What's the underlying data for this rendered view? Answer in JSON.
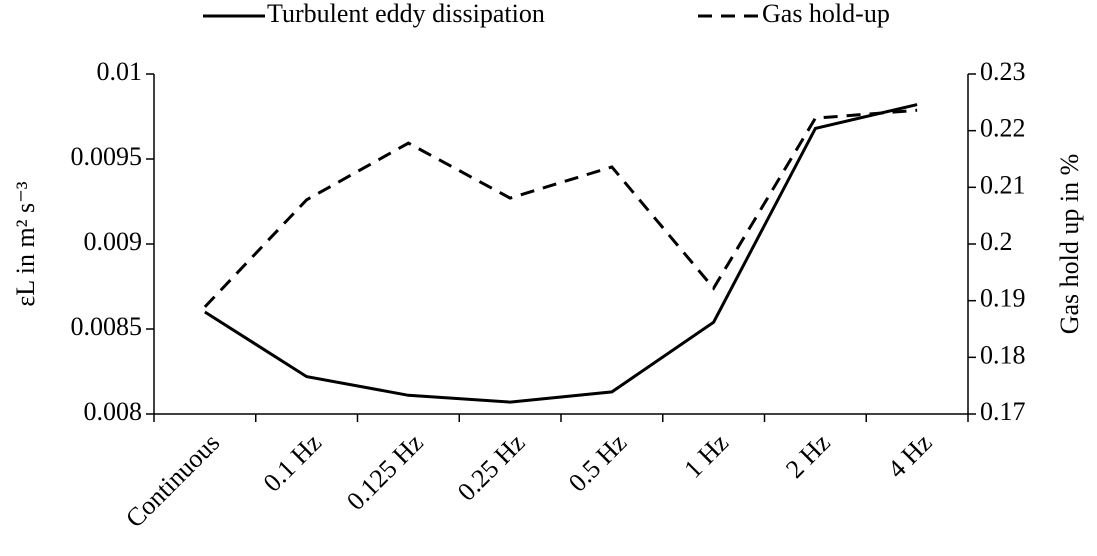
{
  "chart_data": {
    "type": "line",
    "categories": [
      "Continuous",
      "0.1 Hz",
      "0.125 Hz",
      "0.25 Hz",
      "0.5 Hz",
      "1 Hz",
      "2 Hz",
      "4 Hz"
    ],
    "series": [
      {
        "name": "Turbulent eddy dissipation",
        "color": "#000000",
        "line_style": "solid",
        "axis": "y",
        "values": [
          0.0086,
          0.00822,
          0.00811,
          0.00807,
          0.00813,
          0.00854,
          0.00968,
          0.00982
        ]
      },
      {
        "name": "Gas hold-up",
        "color": "#000000",
        "line_style": "dashed",
        "axis": "y2",
        "values": [
          0.1889,
          0.2078,
          0.2178,
          0.2081,
          0.2136,
          0.1922,
          0.2222,
          0.2236
        ]
      }
    ],
    "y_label": "εL in m² s⁻³",
    "y2_label": "Gas hold up in %",
    "ylim": [
      0.008,
      0.01
    ],
    "yticks": [
      0.008,
      0.0085,
      0.009,
      0.0095,
      0.01
    ],
    "y2lim": [
      0.17,
      0.23
    ],
    "y2ticks": [
      0.17,
      0.18,
      0.19,
      0.2,
      0.21,
      0.22,
      0.23
    ],
    "grid": false,
    "legend": "top"
  }
}
